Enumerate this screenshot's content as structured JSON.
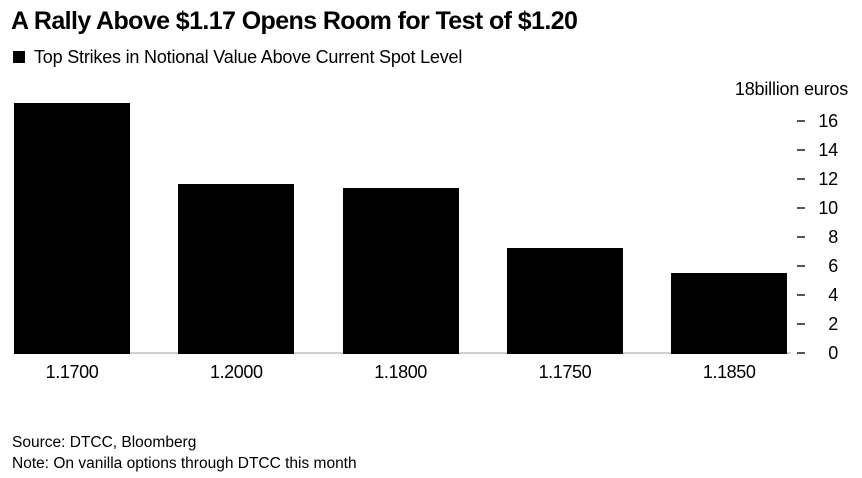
{
  "header": {
    "title": "A Rally Above $1.17 Opens Room for Test of $1.20",
    "legend_label": "Top Strikes in Notional Value Above Current Spot Level"
  },
  "footer": {
    "source": "Source: DTCC, Bloomberg",
    "note": "Note: On vanilla options through DTCC this month"
  },
  "chart_data": {
    "type": "bar",
    "title": "A Rally Above $1.17 Opens Room for Test of $1.20",
    "legend": "Top Strikes in Notional Value Above Current Spot Level",
    "categories": [
      "1.1700",
      "1.2000",
      "1.1800",
      "1.1750",
      "1.1850"
    ],
    "values": [
      17.3,
      11.7,
      11.4,
      7.3,
      5.6
    ],
    "xlabel": "",
    "ylabel": "billion euros",
    "y_axis_top_label": "18billion euros",
    "ylim": [
      0,
      18
    ],
    "y_ticks": [
      0,
      2,
      4,
      6,
      8,
      10,
      12,
      14,
      16
    ],
    "y_axis_position": "right",
    "grid": false,
    "legend_position": "top-left",
    "bar_color": "#000000",
    "axis_line_color": "#cfcfcf",
    "tick_dash_color": "#555555"
  }
}
